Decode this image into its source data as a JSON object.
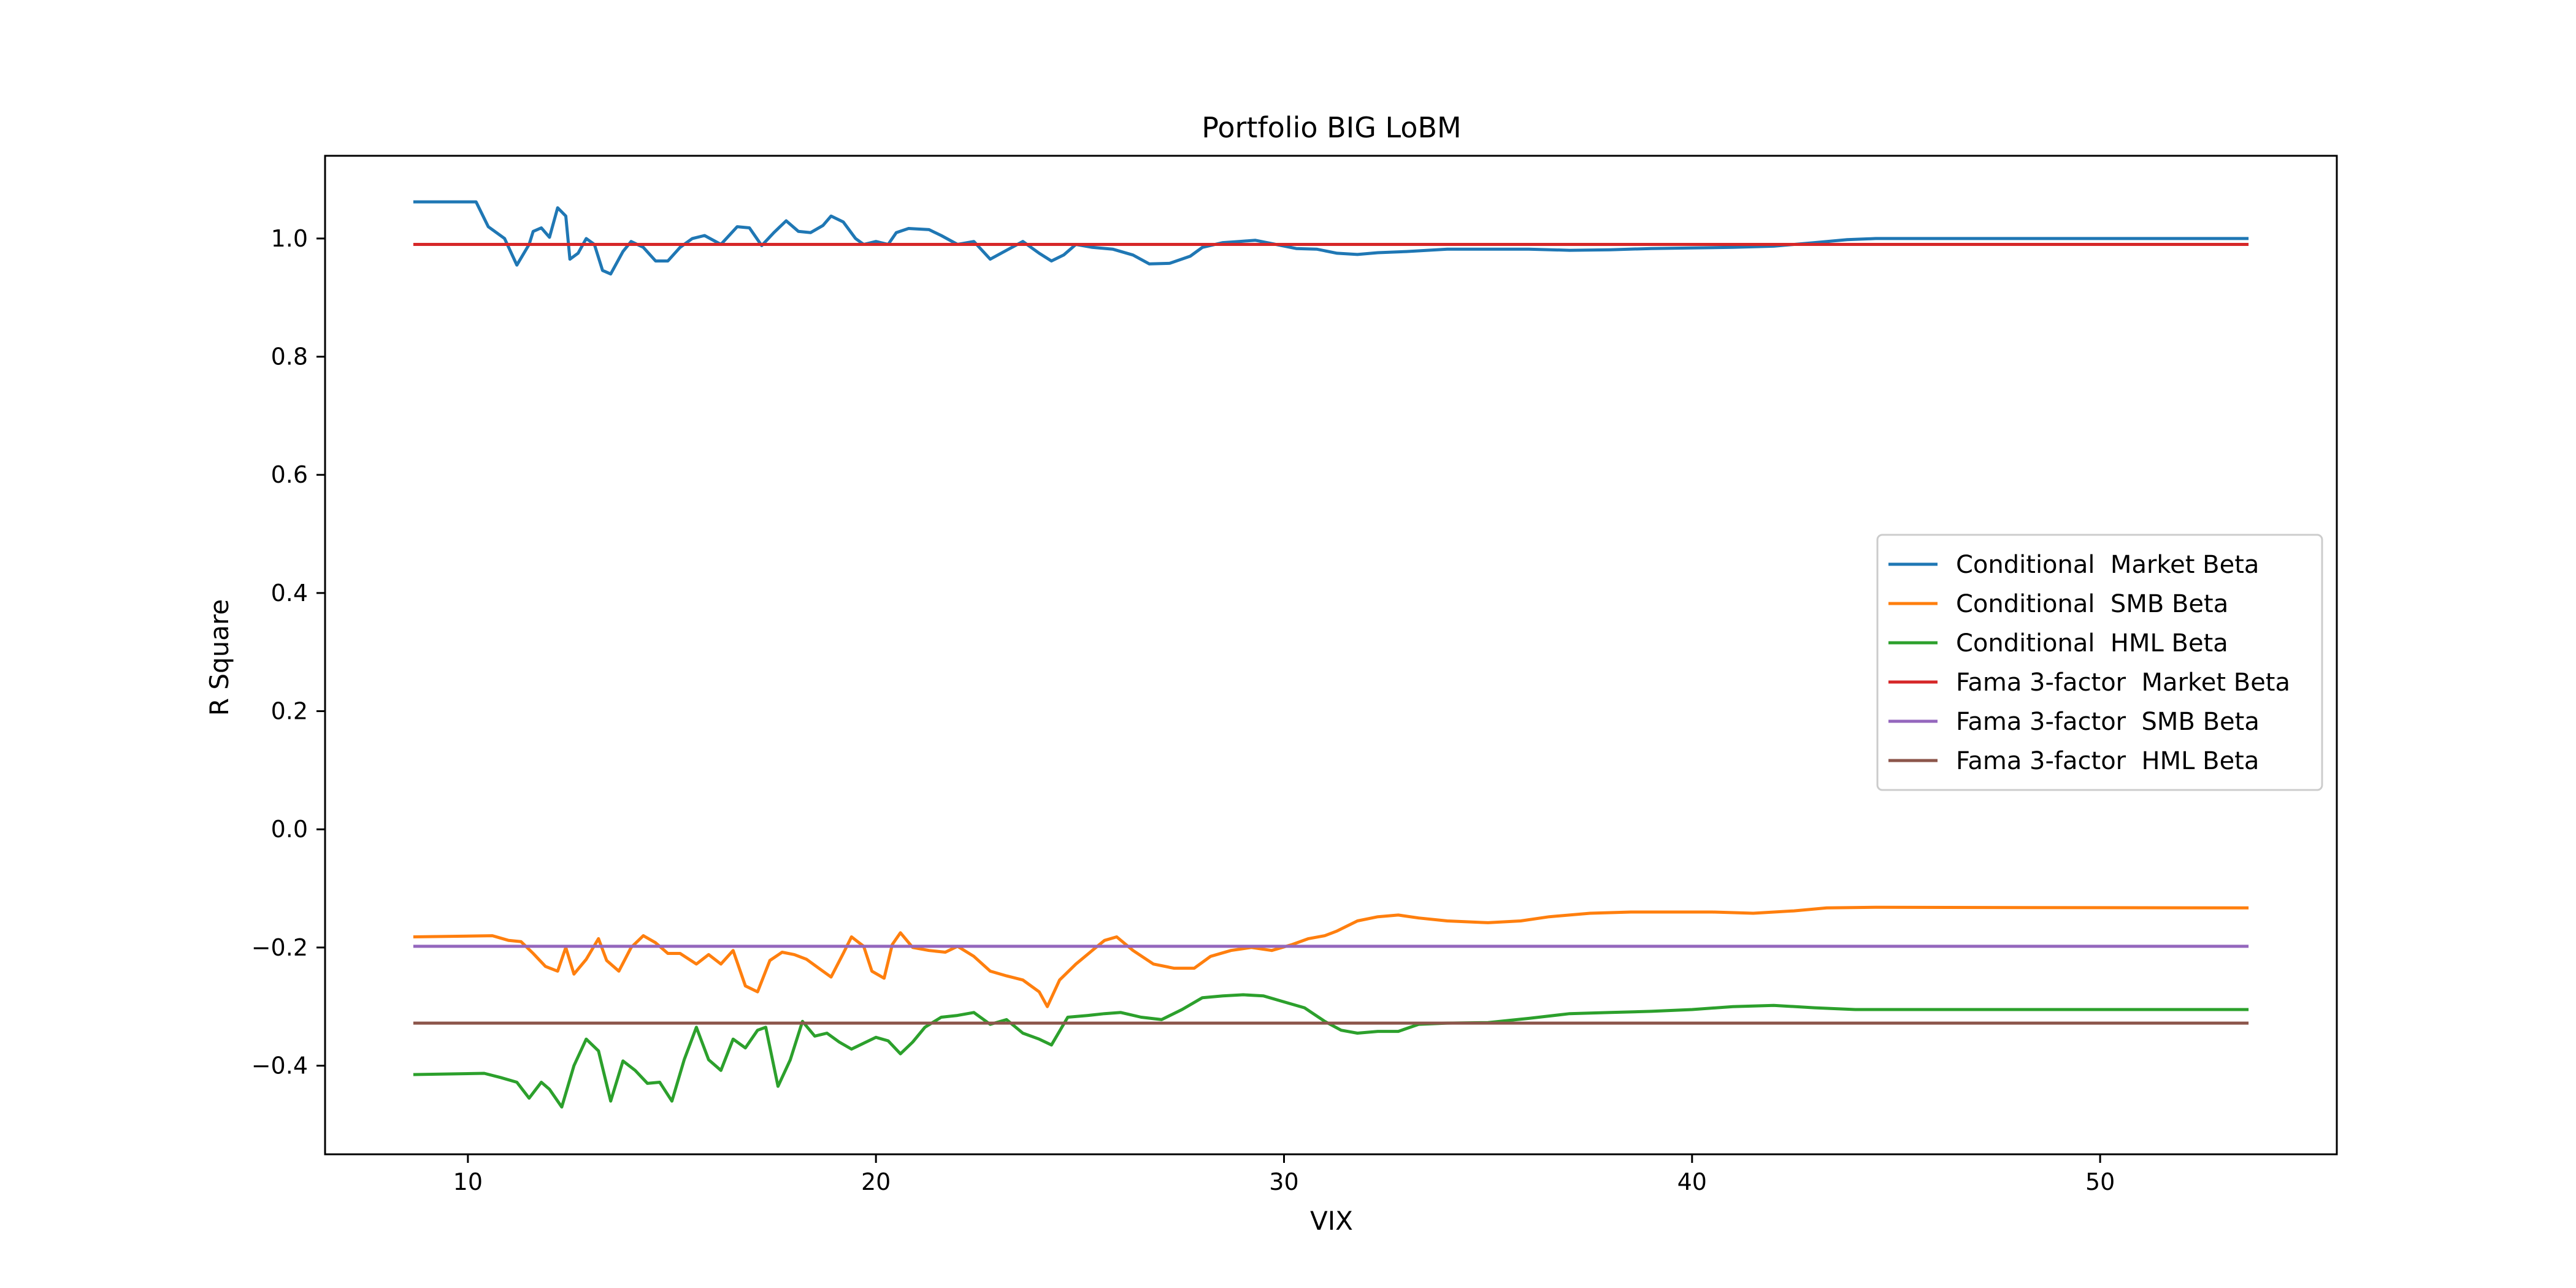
{
  "chart_data": {
    "type": "line",
    "title": "Portfolio BIG LoBM",
    "xlabel": "VIX",
    "ylabel": "R Square",
    "xlim": [
      6.5,
      55.8
    ],
    "ylim": [
      -0.55,
      1.14
    ],
    "xticks": [
      10,
      20,
      30,
      40,
      50
    ],
    "xtick_labels": [
      "10",
      "20",
      "30",
      "40",
      "50"
    ],
    "yticks": [
      -0.4,
      -0.2,
      0.0,
      0.2,
      0.4,
      0.6,
      0.8,
      1.0
    ],
    "ytick_labels": [
      "−0.4",
      "−0.2",
      "0.0",
      "0.2",
      "0.4",
      "0.6",
      "0.8",
      "1.0"
    ],
    "grid": false,
    "legend_position": "center-right",
    "series": [
      {
        "name": "Conditional  Market Beta",
        "color": "#1f77b4",
        "points": [
          [
            8.7,
            1.062
          ],
          [
            10.2,
            1.062
          ],
          [
            10.5,
            1.02
          ],
          [
            10.9,
            1.0
          ],
          [
            11.2,
            0.955
          ],
          [
            11.5,
            0.99
          ],
          [
            11.6,
            1.012
          ],
          [
            11.8,
            1.018
          ],
          [
            12.0,
            1.002
          ],
          [
            12.2,
            1.052
          ],
          [
            12.4,
            1.038
          ],
          [
            12.5,
            0.965
          ],
          [
            12.7,
            0.975
          ],
          [
            12.9,
            1.0
          ],
          [
            13.1,
            0.99
          ],
          [
            13.3,
            0.946
          ],
          [
            13.5,
            0.94
          ],
          [
            13.8,
            0.978
          ],
          [
            14.0,
            0.995
          ],
          [
            14.3,
            0.985
          ],
          [
            14.6,
            0.962
          ],
          [
            14.9,
            0.962
          ],
          [
            15.2,
            0.985
          ],
          [
            15.5,
            1.0
          ],
          [
            15.8,
            1.005
          ],
          [
            16.2,
            0.99
          ],
          [
            16.6,
            1.02
          ],
          [
            16.9,
            1.018
          ],
          [
            17.2,
            0.988
          ],
          [
            17.5,
            1.01
          ],
          [
            17.8,
            1.03
          ],
          [
            18.1,
            1.012
          ],
          [
            18.4,
            1.01
          ],
          [
            18.7,
            1.022
          ],
          [
            18.9,
            1.038
          ],
          [
            19.2,
            1.028
          ],
          [
            19.5,
            1.0
          ],
          [
            19.7,
            0.99
          ],
          [
            20.0,
            0.995
          ],
          [
            20.3,
            0.99
          ],
          [
            20.5,
            1.01
          ],
          [
            20.8,
            1.017
          ],
          [
            21.3,
            1.015
          ],
          [
            21.6,
            1.005
          ],
          [
            22.0,
            0.99
          ],
          [
            22.4,
            0.995
          ],
          [
            22.8,
            0.965
          ],
          [
            23.2,
            0.98
          ],
          [
            23.6,
            0.995
          ],
          [
            24.0,
            0.975
          ],
          [
            24.3,
            0.962
          ],
          [
            24.6,
            0.972
          ],
          [
            24.9,
            0.99
          ],
          [
            25.3,
            0.985
          ],
          [
            25.8,
            0.982
          ],
          [
            26.3,
            0.972
          ],
          [
            26.7,
            0.957
          ],
          [
            27.2,
            0.958
          ],
          [
            27.7,
            0.97
          ],
          [
            28.0,
            0.985
          ],
          [
            28.5,
            0.993
          ],
          [
            28.9,
            0.995
          ],
          [
            29.3,
            0.997
          ],
          [
            29.8,
            0.99
          ],
          [
            30.3,
            0.983
          ],
          [
            30.8,
            0.982
          ],
          [
            31.3,
            0.975
          ],
          [
            31.8,
            0.973
          ],
          [
            32.3,
            0.976
          ],
          [
            33.0,
            0.978
          ],
          [
            34.0,
            0.982
          ],
          [
            35.0,
            0.982
          ],
          [
            36.0,
            0.982
          ],
          [
            37.0,
            0.98
          ],
          [
            38.0,
            0.981
          ],
          [
            39.0,
            0.983
          ],
          [
            40.0,
            0.984
          ],
          [
            41.0,
            0.985
          ],
          [
            42.0,
            0.987
          ],
          [
            43.0,
            0.993
          ],
          [
            43.8,
            0.998
          ],
          [
            44.5,
            1.0
          ],
          [
            53.6,
            1.0
          ]
        ]
      },
      {
        "name": "Conditional  SMB Beta",
        "color": "#ff7f0e",
        "points": [
          [
            8.7,
            -0.182
          ],
          [
            10.6,
            -0.18
          ],
          [
            11.0,
            -0.188
          ],
          [
            11.3,
            -0.19
          ],
          [
            11.6,
            -0.21
          ],
          [
            11.9,
            -0.232
          ],
          [
            12.2,
            -0.24
          ],
          [
            12.4,
            -0.2
          ],
          [
            12.6,
            -0.245
          ],
          [
            12.9,
            -0.22
          ],
          [
            13.2,
            -0.185
          ],
          [
            13.4,
            -0.222
          ],
          [
            13.7,
            -0.24
          ],
          [
            14.0,
            -0.2
          ],
          [
            14.3,
            -0.18
          ],
          [
            14.6,
            -0.192
          ],
          [
            14.9,
            -0.21
          ],
          [
            15.2,
            -0.21
          ],
          [
            15.6,
            -0.228
          ],
          [
            15.9,
            -0.212
          ],
          [
            16.2,
            -0.228
          ],
          [
            16.5,
            -0.205
          ],
          [
            16.8,
            -0.265
          ],
          [
            17.1,
            -0.275
          ],
          [
            17.4,
            -0.222
          ],
          [
            17.7,
            -0.208
          ],
          [
            18.0,
            -0.212
          ],
          [
            18.3,
            -0.22
          ],
          [
            18.6,
            -0.235
          ],
          [
            18.9,
            -0.25
          ],
          [
            19.2,
            -0.21
          ],
          [
            19.4,
            -0.182
          ],
          [
            19.7,
            -0.198
          ],
          [
            19.9,
            -0.24
          ],
          [
            20.2,
            -0.252
          ],
          [
            20.4,
            -0.195
          ],
          [
            20.6,
            -0.175
          ],
          [
            20.9,
            -0.2
          ],
          [
            21.3,
            -0.205
          ],
          [
            21.7,
            -0.208
          ],
          [
            22.0,
            -0.198
          ],
          [
            22.4,
            -0.215
          ],
          [
            22.8,
            -0.24
          ],
          [
            23.2,
            -0.248
          ],
          [
            23.6,
            -0.255
          ],
          [
            24.0,
            -0.275
          ],
          [
            24.2,
            -0.3
          ],
          [
            24.5,
            -0.255
          ],
          [
            24.9,
            -0.228
          ],
          [
            25.3,
            -0.205
          ],
          [
            25.6,
            -0.188
          ],
          [
            25.9,
            -0.182
          ],
          [
            26.3,
            -0.205
          ],
          [
            26.8,
            -0.228
          ],
          [
            27.3,
            -0.235
          ],
          [
            27.8,
            -0.235
          ],
          [
            28.2,
            -0.215
          ],
          [
            28.7,
            -0.205
          ],
          [
            29.2,
            -0.2
          ],
          [
            29.7,
            -0.205
          ],
          [
            30.2,
            -0.195
          ],
          [
            30.6,
            -0.185
          ],
          [
            31.0,
            -0.18
          ],
          [
            31.3,
            -0.172
          ],
          [
            31.8,
            -0.155
          ],
          [
            32.3,
            -0.148
          ],
          [
            32.8,
            -0.145
          ],
          [
            33.3,
            -0.15
          ],
          [
            34.0,
            -0.155
          ],
          [
            35.0,
            -0.158
          ],
          [
            35.8,
            -0.155
          ],
          [
            36.5,
            -0.148
          ],
          [
            37.5,
            -0.142
          ],
          [
            38.5,
            -0.14
          ],
          [
            39.5,
            -0.14
          ],
          [
            40.5,
            -0.14
          ],
          [
            41.5,
            -0.142
          ],
          [
            42.5,
            -0.138
          ],
          [
            43.3,
            -0.133
          ],
          [
            44.5,
            -0.132
          ],
          [
            53.6,
            -0.133
          ]
        ]
      },
      {
        "name": "Conditional  HML Beta",
        "color": "#2ca02c",
        "points": [
          [
            8.7,
            -0.415
          ],
          [
            10.4,
            -0.413
          ],
          [
            10.8,
            -0.42
          ],
          [
            11.2,
            -0.428
          ],
          [
            11.5,
            -0.455
          ],
          [
            11.8,
            -0.428
          ],
          [
            12.0,
            -0.44
          ],
          [
            12.3,
            -0.47
          ],
          [
            12.6,
            -0.4
          ],
          [
            12.9,
            -0.355
          ],
          [
            13.2,
            -0.375
          ],
          [
            13.5,
            -0.46
          ],
          [
            13.8,
            -0.392
          ],
          [
            14.1,
            -0.408
          ],
          [
            14.4,
            -0.43
          ],
          [
            14.7,
            -0.428
          ],
          [
            15.0,
            -0.46
          ],
          [
            15.3,
            -0.39
          ],
          [
            15.6,
            -0.335
          ],
          [
            15.9,
            -0.39
          ],
          [
            16.2,
            -0.408
          ],
          [
            16.5,
            -0.355
          ],
          [
            16.8,
            -0.37
          ],
          [
            17.1,
            -0.34
          ],
          [
            17.3,
            -0.335
          ],
          [
            17.6,
            -0.435
          ],
          [
            17.9,
            -0.39
          ],
          [
            18.2,
            -0.325
          ],
          [
            18.5,
            -0.35
          ],
          [
            18.8,
            -0.345
          ],
          [
            19.1,
            -0.36
          ],
          [
            19.4,
            -0.372
          ],
          [
            19.7,
            -0.362
          ],
          [
            20.0,
            -0.352
          ],
          [
            20.3,
            -0.358
          ],
          [
            20.6,
            -0.38
          ],
          [
            20.9,
            -0.36
          ],
          [
            21.2,
            -0.335
          ],
          [
            21.6,
            -0.318
          ],
          [
            22.0,
            -0.315
          ],
          [
            22.4,
            -0.31
          ],
          [
            22.8,
            -0.33
          ],
          [
            23.2,
            -0.322
          ],
          [
            23.6,
            -0.345
          ],
          [
            24.0,
            -0.355
          ],
          [
            24.3,
            -0.365
          ],
          [
            24.7,
            -0.318
          ],
          [
            25.2,
            -0.315
          ],
          [
            25.6,
            -0.312
          ],
          [
            26.0,
            -0.31
          ],
          [
            26.5,
            -0.318
          ],
          [
            27.0,
            -0.322
          ],
          [
            27.5,
            -0.305
          ],
          [
            28.0,
            -0.285
          ],
          [
            28.5,
            -0.282
          ],
          [
            29.0,
            -0.28
          ],
          [
            29.5,
            -0.282
          ],
          [
            30.0,
            -0.292
          ],
          [
            30.5,
            -0.302
          ],
          [
            31.0,
            -0.325
          ],
          [
            31.4,
            -0.34
          ],
          [
            31.8,
            -0.345
          ],
          [
            32.3,
            -0.342
          ],
          [
            32.8,
            -0.342
          ],
          [
            33.3,
            -0.33
          ],
          [
            34.0,
            -0.328
          ],
          [
            35.0,
            -0.327
          ],
          [
            36.0,
            -0.32
          ],
          [
            37.0,
            -0.312
          ],
          [
            38.0,
            -0.31
          ],
          [
            39.0,
            -0.308
          ],
          [
            40.0,
            -0.305
          ],
          [
            41.0,
            -0.3
          ],
          [
            42.0,
            -0.298
          ],
          [
            43.0,
            -0.302
          ],
          [
            44.0,
            -0.305
          ],
          [
            53.6,
            -0.305
          ]
        ]
      },
      {
        "name": "Fama 3-factor  Market Beta",
        "color": "#d62728",
        "points": [
          [
            8.7,
            0.99
          ],
          [
            53.6,
            0.99
          ]
        ]
      },
      {
        "name": "Fama 3-factor  SMB Beta",
        "color": "#9467bd",
        "points": [
          [
            8.7,
            -0.198
          ],
          [
            53.6,
            -0.198
          ]
        ]
      },
      {
        "name": "Fama 3-factor  HML Beta",
        "color": "#8c564b",
        "points": [
          [
            8.7,
            -0.328
          ],
          [
            53.6,
            -0.328
          ]
        ]
      }
    ]
  }
}
